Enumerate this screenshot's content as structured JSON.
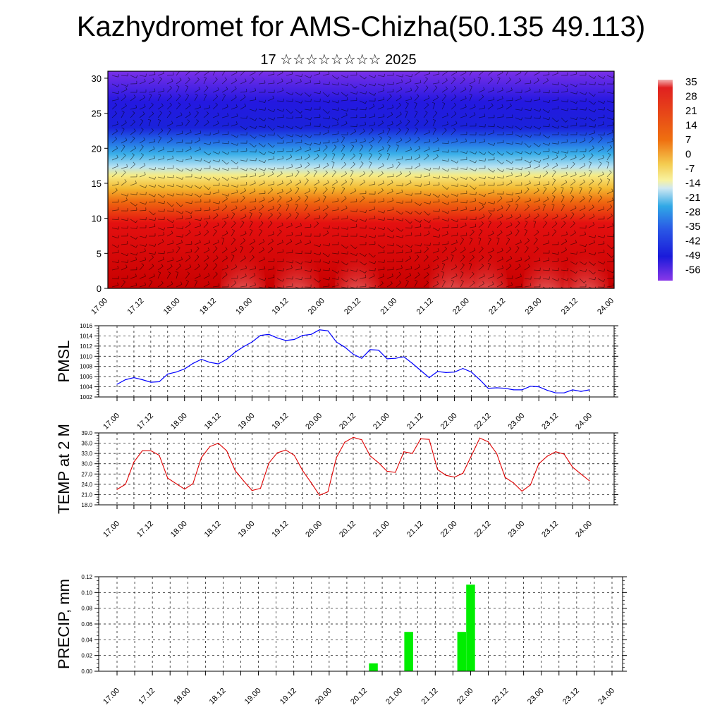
{
  "page": {
    "title": "Kazhydromet for AMS-Chizha(50.135 49.113)",
    "subtitle": "17 ☆☆☆☆☆☆☆☆ 2025"
  },
  "time_labels": [
    "17.00",
    "17.12",
    "18.00",
    "18.12",
    "19.00",
    "19.12",
    "20.00",
    "20.12",
    "21.00",
    "21.12",
    "22.00",
    "22.12",
    "23.00",
    "23.12",
    "24.00"
  ],
  "chart_data": [
    {
      "type": "heatmap",
      "title": "Kazhydromet for AMS-Chizha(50.135 49.113)",
      "subtitle": "17 ☆☆☆☆☆☆☆☆ 2025",
      "x": [
        "17.00",
        "17.12",
        "18.00",
        "18.12",
        "19.00",
        "19.12",
        "20.00",
        "20.12",
        "21.00",
        "21.12",
        "22.00",
        "22.12",
        "23.00",
        "23.12",
        "24.00"
      ],
      "ylim": [
        0,
        31
      ],
      "yticks": [
        0,
        5,
        10,
        15,
        20,
        25,
        30
      ],
      "colorbar_labels": [
        "35",
        "28",
        "21",
        "14",
        "7",
        "0",
        "-7",
        "-14",
        "-21",
        "-28",
        "-35",
        "-42",
        "-49",
        "-56"
      ],
      "colors": {
        "warm": "#d60000",
        "yellow": "#f5e870",
        "cyan": "#2ab0e8",
        "blue": "#1a1ae0",
        "violet": "#7a28e8"
      }
    },
    {
      "type": "line",
      "ylabel": "PMSL",
      "ylim": [
        1002,
        1016
      ],
      "yticks": [
        1002,
        1004,
        1006,
        1008,
        1010,
        1012,
        1014,
        1016
      ],
      "color": "#0000ff",
      "x": [
        0,
        0.125,
        0.25,
        0.375,
        0.5,
        0.625,
        0.75,
        0.875,
        1,
        1.125,
        1.25,
        1.375,
        1.5,
        1.625,
        1.75,
        1.875,
        2,
        2.125,
        2.25,
        2.375,
        2.5,
        2.625,
        2.75,
        2.875,
        3,
        3.125,
        3.25,
        3.375,
        3.5,
        3.625,
        3.75,
        3.875,
        4,
        4.125,
        4.25,
        4.375,
        4.5,
        4.625,
        4.75,
        4.875,
        5,
        5.125,
        5.25,
        5.375,
        5.5,
        5.625,
        5.75,
        5.875,
        6,
        6.125,
        6.25,
        6.375,
        6.5,
        6.625,
        6.75,
        6.875,
        7
      ],
      "values": [
        1004.5,
        1005.4,
        1005.8,
        1005.4,
        1004.9,
        1005.0,
        1006.5,
        1006.9,
        1007.5,
        1008.6,
        1009.4,
        1008.8,
        1008.5,
        1009.4,
        1010.8,
        1011.9,
        1012.8,
        1014.1,
        1014.3,
        1013.6,
        1013.1,
        1013.3,
        1014.1,
        1014.3,
        1015.2,
        1015.0,
        1012.8,
        1011.8,
        1010.4,
        1009.6,
        1011.3,
        1011.2,
        1009.5,
        1009.6,
        1009.9,
        1008.6,
        1007.2,
        1005.8,
        1007.0,
        1006.8,
        1006.9,
        1007.6,
        1006.9,
        1005.4,
        1003.7,
        1003.8,
        1003.7,
        1003.4,
        1003.4,
        1004.1,
        1004.0,
        1003.3,
        1002.8,
        1002.8,
        1003.4,
        1003.1,
        1003.4
      ]
    },
    {
      "type": "line",
      "ylabel": "TEMP at 2 M",
      "ylim": [
        18,
        39
      ],
      "yticks": [
        "18.0",
        "21.0",
        "24.0",
        "27.0",
        "30.0",
        "33.0",
        "36.0",
        "39.0"
      ],
      "color": "#dd0000",
      "x": [
        0,
        0.125,
        0.25,
        0.375,
        0.5,
        0.625,
        0.75,
        0.875,
        1,
        1.125,
        1.25,
        1.375,
        1.5,
        1.625,
        1.75,
        1.875,
        2,
        2.125,
        2.25,
        2.375,
        2.5,
        2.625,
        2.75,
        2.875,
        3,
        3.125,
        3.25,
        3.375,
        3.5,
        3.625,
        3.75,
        3.875,
        4,
        4.125,
        4.25,
        4.375,
        4.5,
        4.625,
        4.75,
        4.875,
        5,
        5.125,
        5.25,
        5.375,
        5.5,
        5.625,
        5.75,
        5.875,
        6,
        6.125,
        6.25,
        6.375,
        6.5,
        6.625,
        6.75,
        6.875,
        7
      ],
      "values": [
        22.5,
        24.0,
        30.5,
        33.8,
        33.8,
        32.5,
        25.8,
        24.2,
        22.6,
        24.2,
        31.8,
        35.0,
        36.0,
        33.8,
        28.0,
        25.0,
        22.2,
        22.8,
        30.2,
        33.2,
        34.0,
        32.5,
        28.0,
        24.5,
        20.8,
        21.8,
        31.8,
        36.3,
        37.7,
        37.0,
        32.3,
        30.3,
        27.8,
        27.5,
        33.5,
        33.0,
        37.3,
        37.1,
        28.3,
        26.6,
        26.1,
        27.2,
        32.3,
        37.5,
        36.4,
        33.0,
        26.0,
        24.4,
        22.0,
        23.8,
        30.0,
        32.2,
        33.5,
        32.8,
        29.0,
        27.0,
        25.0
      ]
    },
    {
      "type": "bar",
      "ylabel": "PRECIP, mm",
      "ylim": [
        0,
        0.12
      ],
      "yticks": [
        "0.00",
        "0.02",
        "0.04",
        "0.06",
        "0.08",
        "0.10",
        "0.12"
      ],
      "color": "#00ee00",
      "x": [
        3.625,
        4.125,
        4.875,
        5.0
      ],
      "values": [
        0.01,
        0.05,
        0.05,
        0.11
      ]
    }
  ]
}
